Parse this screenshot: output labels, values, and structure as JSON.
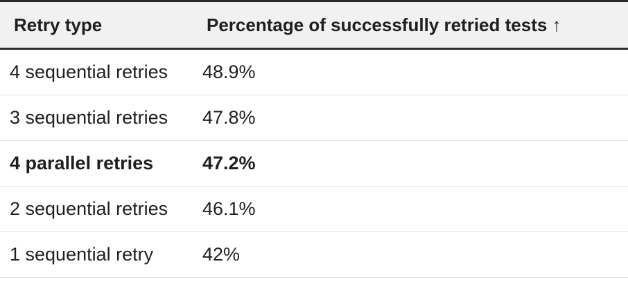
{
  "table": {
    "headers": {
      "retry_type": "Retry type",
      "percentage": "Percentage of successfully retried tests ↑"
    },
    "rows": [
      {
        "retry_type": "4 sequential retries",
        "percentage": "48.9%",
        "bold": false
      },
      {
        "retry_type": "3 sequential retries",
        "percentage": "47.8%",
        "bold": false
      },
      {
        "retry_type": "4 parallel retries",
        "percentage": "47.2%",
        "bold": true
      },
      {
        "retry_type": "2 sequential retries",
        "percentage": "46.1%",
        "bold": false
      },
      {
        "retry_type": "1 sequential retry",
        "percentage": "42%",
        "bold": false
      }
    ]
  }
}
